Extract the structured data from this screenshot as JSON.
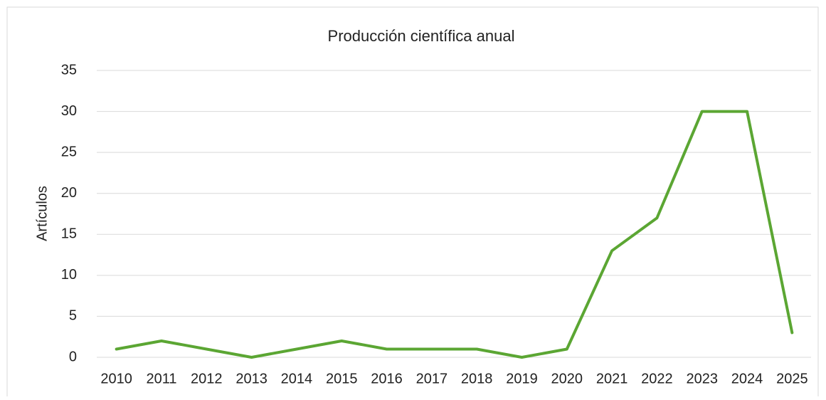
{
  "chart_data": {
    "type": "line",
    "title": "Producción científica anual",
    "y_label": "Artículos",
    "categories": [
      "2010",
      "2011",
      "2012",
      "2013",
      "2014",
      "2015",
      "2016",
      "2017",
      "2018",
      "2019",
      "2020",
      "2021",
      "2022",
      "2023",
      "2024",
      "2025"
    ],
    "series": [
      {
        "name": "Artículos",
        "color": "#5ba633",
        "values": [
          1,
          2,
          1,
          0,
          1,
          2,
          1,
          1,
          1,
          0,
          1,
          13,
          17,
          30,
          30,
          3
        ]
      }
    ],
    "ylim": [
      0,
      35
    ],
    "yticks": [
      0,
      5,
      10,
      15,
      20,
      25,
      30,
      35
    ],
    "grid": true
  }
}
